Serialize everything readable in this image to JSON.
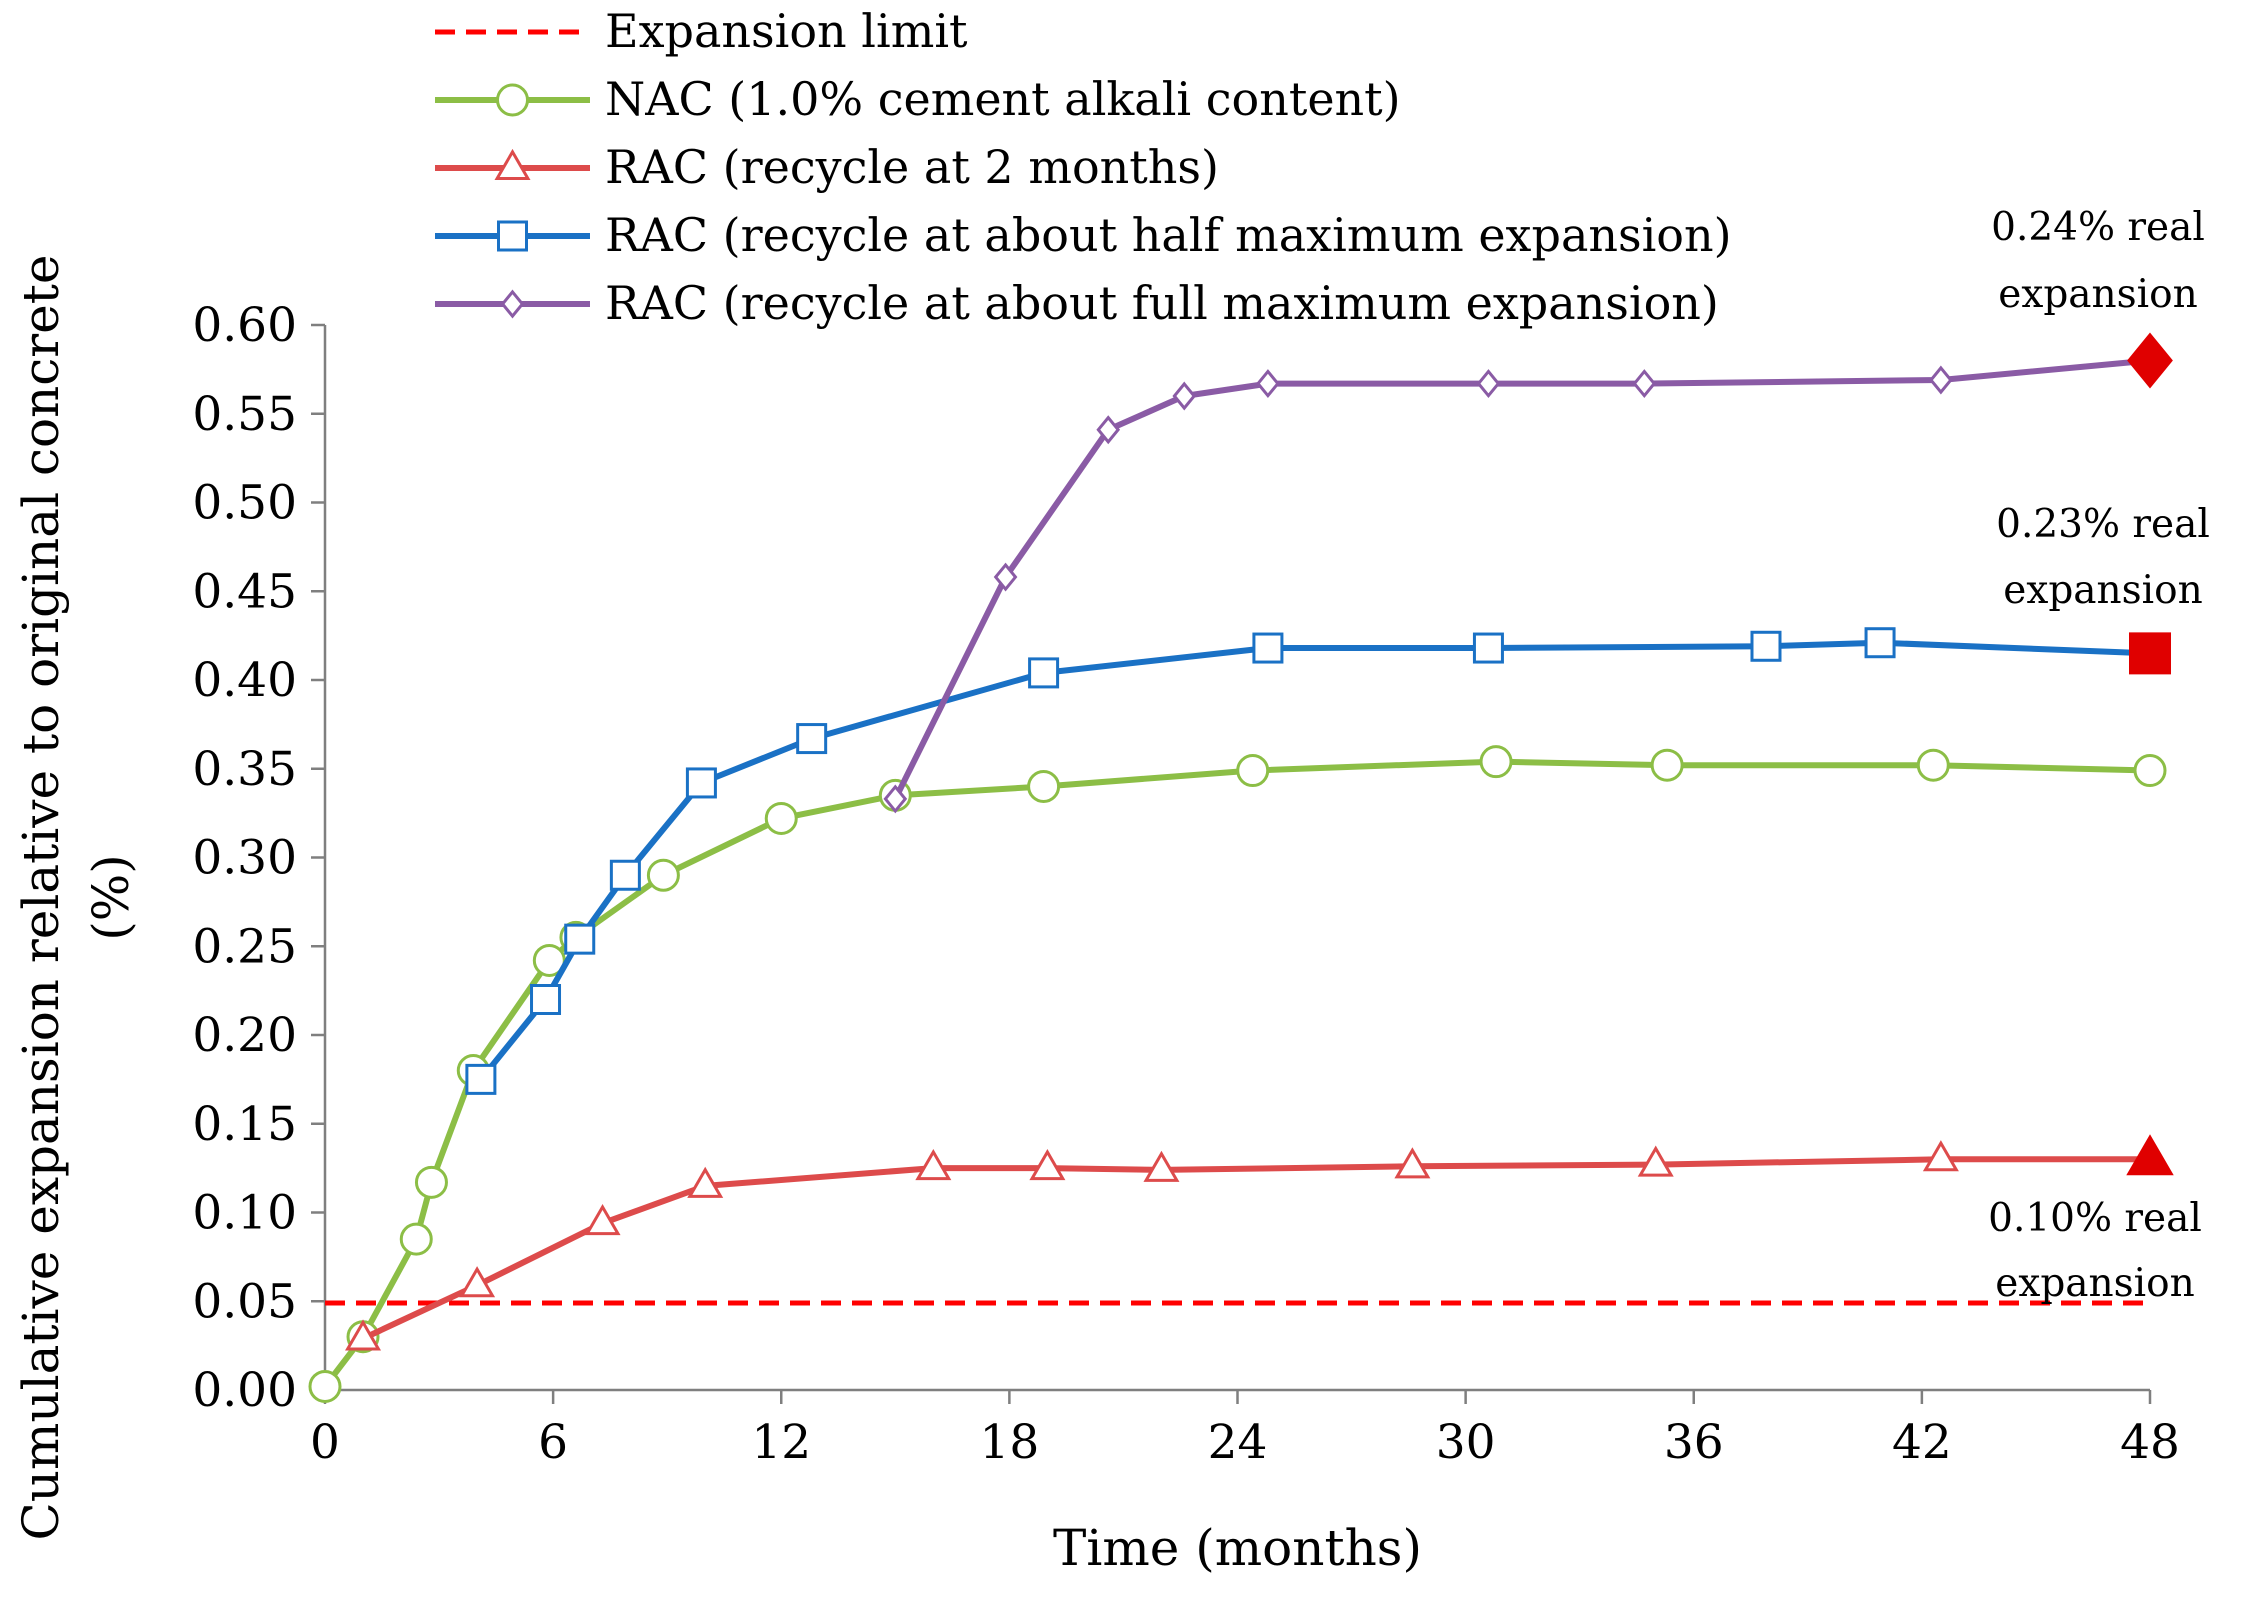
{
  "chart_data": {
    "type": "line",
    "title": "",
    "xlabel": "Time (months)",
    "ylabel_lines": [
      "Cumulative expansion relative to original concrete",
      "(%)"
    ],
    "xlim": [
      0,
      48
    ],
    "ylim": [
      0,
      0.6
    ],
    "xticks": [
      "0",
      "6",
      "12",
      "18",
      "24",
      "30",
      "36",
      "42",
      "48"
    ],
    "xtick_values": [
      0,
      6,
      12,
      18,
      24,
      30,
      36,
      42,
      48
    ],
    "yticks": [
      "0.00",
      "0.05",
      "0.10",
      "0.15",
      "0.20",
      "0.25",
      "0.30",
      "0.35",
      "0.40",
      "0.45",
      "0.50",
      "0.55",
      "0.60"
    ],
    "ytick_values": [
      0,
      0.05,
      0.1,
      0.15,
      0.2,
      0.25,
      0.3,
      0.35,
      0.4,
      0.45,
      0.5,
      0.55,
      0.6
    ],
    "grid": false,
    "legend_position": "top",
    "series": [
      {
        "name": "Expansion limit",
        "color": "#ff0000",
        "dash": true,
        "marker": "none",
        "points": [
          [
            0,
            0.049
          ],
          [
            48,
            0.049
          ]
        ]
      },
      {
        "name": "NAC (1.0% cement alkali content)",
        "color": "#8cbe46",
        "marker": "circle",
        "points": [
          [
            0,
            0.002
          ],
          [
            1,
            0.03
          ],
          [
            2.4,
            0.085
          ],
          [
            2.8,
            0.117
          ],
          [
            3.9,
            0.18
          ],
          [
            5.9,
            0.242
          ],
          [
            6.6,
            0.255
          ],
          [
            8.9,
            0.29
          ],
          [
            12,
            0.322
          ],
          [
            15,
            0.335
          ],
          [
            18.9,
            0.34
          ],
          [
            24.4,
            0.349
          ],
          [
            30.8,
            0.354
          ],
          [
            35.3,
            0.352
          ],
          [
            42.3,
            0.352
          ],
          [
            48,
            0.349
          ]
        ]
      },
      {
        "name": "RAC (recycle at 2 months)",
        "color": "#dd4b4b",
        "marker": "triangle",
        "points": [
          [
            1,
            0.029
          ],
          [
            4,
            0.059
          ],
          [
            7.3,
            0.094
          ],
          [
            10,
            0.115
          ],
          [
            16,
            0.125
          ],
          [
            19,
            0.125
          ],
          [
            22,
            0.124
          ],
          [
            28.6,
            0.126
          ],
          [
            35,
            0.127
          ],
          [
            42.5,
            0.13
          ],
          [
            48,
            0.13
          ]
        ]
      },
      {
        "name": "RAC (recycle at about half maximum expansion)",
        "color": "#1a71c5",
        "marker": "square",
        "points": [
          [
            4.1,
            0.175
          ],
          [
            5.8,
            0.22
          ],
          [
            6.7,
            0.254
          ],
          [
            7.9,
            0.29
          ],
          [
            9.9,
            0.342
          ],
          [
            12.8,
            0.367
          ],
          [
            18.9,
            0.404
          ],
          [
            24.8,
            0.418
          ],
          [
            30.6,
            0.418
          ],
          [
            37.9,
            0.419
          ],
          [
            40.9,
            0.421
          ],
          [
            48,
            0.415
          ]
        ]
      },
      {
        "name": "RAC (recycle at about full maximum expansion)",
        "color": "#8a5ba5",
        "marker": "diamond",
        "points": [
          [
            15,
            0.333
          ],
          [
            17.9,
            0.458
          ],
          [
            20.6,
            0.541
          ],
          [
            22.6,
            0.56
          ],
          [
            24.8,
            0.567
          ],
          [
            30.6,
            0.567
          ],
          [
            34.7,
            0.567
          ],
          [
            42.5,
            0.569
          ],
          [
            48,
            0.58
          ]
        ]
      }
    ],
    "end_markers": [
      {
        "series": "RAC (recycle at about full maximum expansion)",
        "shape": "diamond",
        "x": 48,
        "y": 0.58,
        "color": "#e00000"
      },
      {
        "series": "RAC (recycle at about half maximum expansion)",
        "shape": "square",
        "x": 48,
        "y": 0.415,
        "color": "#e00000"
      },
      {
        "series": "RAC (recycle at 2 months)",
        "shape": "triangle",
        "x": 48,
        "y": 0.13,
        "color": "#e00000"
      }
    ],
    "annotations": [
      {
        "lines": [
          "0.24% real",
          "expansion"
        ]
      },
      {
        "lines": [
          "0.23% real",
          "expansion"
        ]
      },
      {
        "lines": [
          "0.10% real",
          "expansion"
        ]
      }
    ]
  }
}
